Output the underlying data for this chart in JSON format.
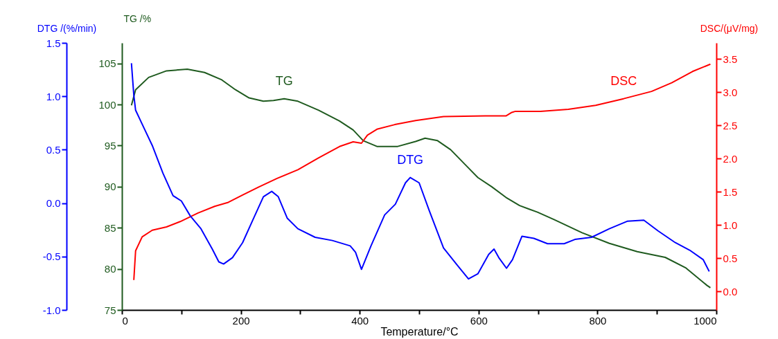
{
  "chart_data": {
    "type": "line",
    "xlabel": "Temperature/°C",
    "ylabel": "TG /%",
    "y2label": "DSC/(μV/mg)",
    "y3label": "DTG /(%/min)",
    "xlim": [
      0,
      1000
    ],
    "xticks": [
      0,
      {
        "value": 100,
        "label": null
      },
      200,
      {
        "value": 300,
        "label": null
      },
      400,
      {
        "value": 500,
        "label": null
      },
      600,
      {
        "value": 700,
        "label": null
      },
      800,
      {
        "value": 900,
        "label": null
      },
      1000
    ],
    "ylim": [
      75,
      107.5
    ],
    "yticks": [
      75,
      80,
      85,
      90,
      95,
      100,
      105
    ],
    "y2lim": [
      -0.28,
      3.74
    ],
    "y2ticks": [
      {
        "value": 0,
        "label": "0.0"
      },
      0.5,
      {
        "value": 1,
        "label": "1.0"
      },
      1.5,
      {
        "value": 2,
        "label": "2.0"
      },
      2.5,
      {
        "value": 3,
        "label": "3.0"
      },
      3.5
    ],
    "y3lim": [
      -1,
      1.5
    ],
    "y3ticks": [
      {
        "value": -1,
        "label": "-1.0"
      },
      -0.5,
      {
        "value": 0,
        "label": "0.0"
      },
      0.5,
      {
        "value": 1,
        "label": "1.0"
      },
      1.5
    ],
    "grid": false,
    "series": [
      {
        "name": "TG",
        "color": "#1e5a1e",
        "x": [
          16,
          23,
          45,
          75,
          110,
          139,
          168,
          191,
          214,
          238,
          255,
          273,
          296,
          331,
          366,
          389,
          406,
          429,
          464,
          494,
          510,
          531,
          553,
          576,
          599,
          622,
          646,
          669,
          699,
          727,
          774,
          820,
          867,
          914,
          949,
          984,
          990
        ],
        "values": [
          99.9,
          101.8,
          103.3,
          104.1,
          104.3,
          103.9,
          103.0,
          101.8,
          100.8,
          100.4,
          100.5,
          100.7,
          100.4,
          99.3,
          98.0,
          96.9,
          95.6,
          94.9,
          94.9,
          95.5,
          95.9,
          95.6,
          94.5,
          92.8,
          91.1,
          90.0,
          88.7,
          87.7,
          86.9,
          86.0,
          84.4,
          83.1,
          82.1,
          81.4,
          80.1,
          78.0,
          77.7
        ]
      },
      {
        "name": "DSC",
        "color": "#ff0000",
        "axis": "y2",
        "x": [
          20,
          23,
          34,
          51,
          75,
          98,
          128,
          156,
          179,
          203,
          230,
          261,
          296,
          331,
          366,
          389,
          403,
          413,
          429,
          459,
          494,
          541,
          611,
          646,
          655,
          662,
          704,
          751,
          797,
          844,
          891,
          925,
          960,
          990
        ],
        "values": [
          0.17,
          0.61,
          0.82,
          0.92,
          0.97,
          1.05,
          1.18,
          1.28,
          1.34,
          1.45,
          1.57,
          1.7,
          1.83,
          2.01,
          2.18,
          2.25,
          2.23,
          2.35,
          2.44,
          2.51,
          2.57,
          2.63,
          2.64,
          2.64,
          2.69,
          2.71,
          2.71,
          2.74,
          2.8,
          2.9,
          3.01,
          3.14,
          3.31,
          3.42
        ]
      },
      {
        "name": "DTG",
        "color": "#0000ff",
        "axis": "y3",
        "x": [
          16,
          20,
          23,
          34,
          51,
          69,
          86,
          100,
          115,
          133,
          152,
          163,
          171,
          186,
          203,
          220,
          238,
          252,
          263,
          278,
          296,
          325,
          354,
          384,
          393,
          403,
          419,
          442,
          460,
          477,
          485,
          500,
          517,
          541,
          564,
          583,
          599,
          617,
          626,
          634,
          647,
          657,
          673,
          693,
          716,
          744,
          762,
          790,
          820,
          850,
          878,
          902,
          931,
          955,
          978,
          988
        ],
        "values": [
          1.31,
          1.01,
          0.87,
          0.74,
          0.54,
          0.28,
          0.07,
          0.02,
          -0.12,
          -0.24,
          -0.43,
          -0.55,
          -0.57,
          -0.51,
          -0.37,
          -0.16,
          0.06,
          0.11,
          0.06,
          -0.14,
          -0.24,
          -0.32,
          -0.35,
          -0.4,
          -0.46,
          -0.62,
          -0.4,
          -0.11,
          -0.01,
          0.19,
          0.24,
          0.19,
          -0.07,
          -0.42,
          -0.58,
          -0.71,
          -0.66,
          -0.48,
          -0.43,
          -0.51,
          -0.61,
          -0.53,
          -0.31,
          -0.33,
          -0.38,
          -0.38,
          -0.34,
          -0.32,
          -0.24,
          -0.17,
          -0.16,
          -0.26,
          -0.37,
          -0.44,
          -0.53,
          -0.64
        ]
      }
    ]
  }
}
